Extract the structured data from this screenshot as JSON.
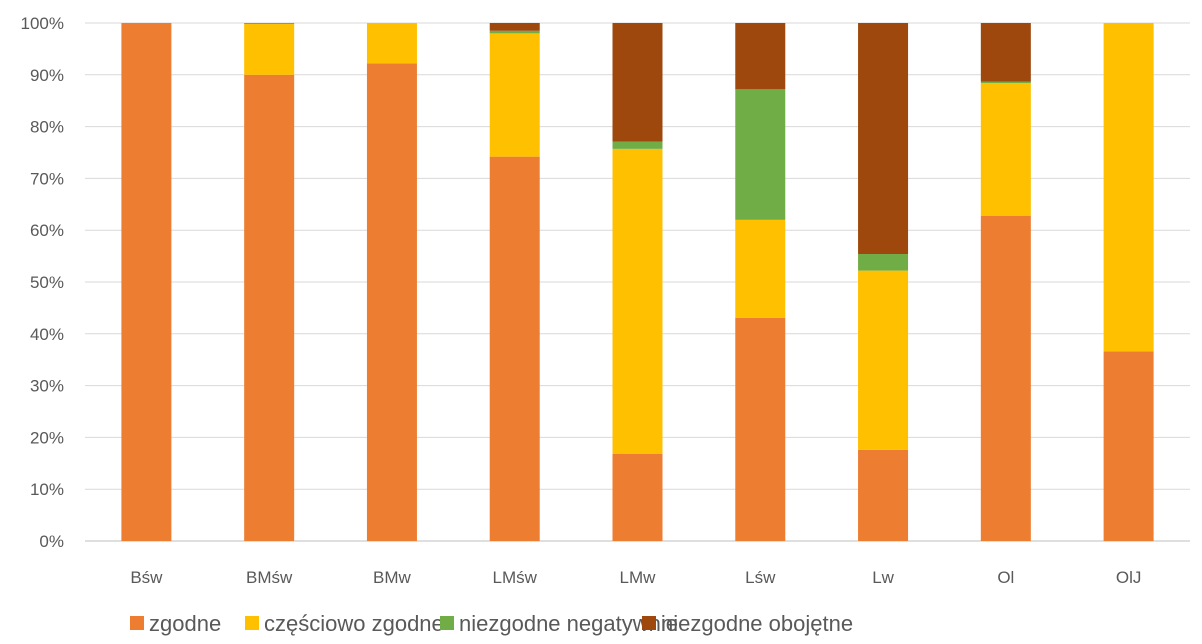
{
  "chart_data": {
    "type": "bar",
    "stacked": true,
    "title": "",
    "xlabel": "",
    "ylabel": "",
    "ylim": [
      0,
      100
    ],
    "y_ticks": [
      "0%",
      "10%",
      "20%",
      "30%",
      "40%",
      "50%",
      "60%",
      "70%",
      "80%",
      "90%",
      "100%"
    ],
    "grid": true,
    "legend_position": "bottom",
    "categories": [
      "Bśw",
      "BMśw",
      "BMw",
      "LMśw",
      "LMw",
      "Lśw",
      "Lw",
      "Ol",
      "OlJ"
    ],
    "series": [
      {
        "name": "zgodne",
        "color": "#ED7D31",
        "values": [
          100,
          90,
          92.2,
          74.2,
          16.8,
          43.1,
          17.6,
          62.8,
          36.6
        ]
      },
      {
        "name": "częściowo zgodne",
        "color": "#FFC000",
        "values": [
          0,
          9.8,
          7.8,
          23.8,
          58.9,
          18.9,
          34.6,
          25.6,
          63.4
        ]
      },
      {
        "name": "niezgodne negatywnie",
        "color": "#70AD47",
        "values": [
          0,
          0.2,
          0,
          0.5,
          1.4,
          25.2,
          3.2,
          0.3,
          0
        ]
      },
      {
        "name": "niezgodne obojętne",
        "color": "#9E480E",
        "values": [
          0,
          0,
          0,
          1.5,
          22.9,
          12.8,
          44.6,
          11.3,
          0
        ]
      }
    ]
  }
}
